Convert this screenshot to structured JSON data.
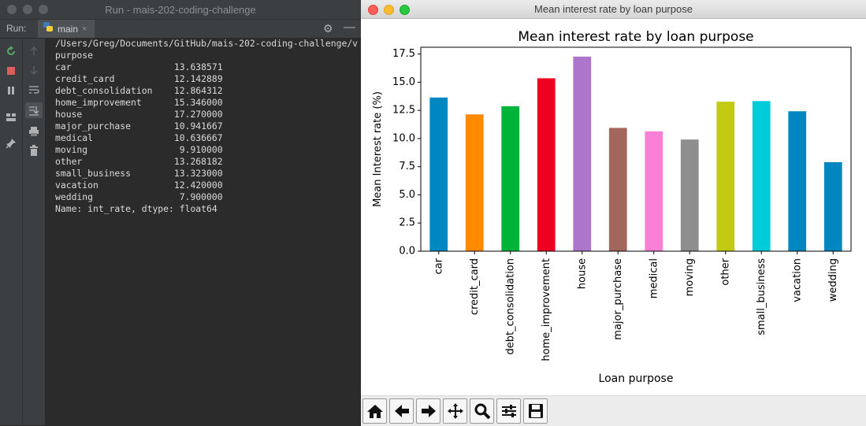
{
  "ide": {
    "title": "Run - mais-202-coding-challenge",
    "run_label": "Run:",
    "tab_label": "main",
    "tab_close": "×",
    "console_lines": [
      "/Users/Greg/Documents/GitHub/mais-202-coding-challenge/v",
      "purpose",
      "car                   13.638571",
      "credit_card           12.142889",
      "debt_consolidation    12.864312",
      "home_improvement      15.346000",
      "house                 17.270000",
      "major_purchase        10.941667",
      "medical               10.636667",
      "moving                 9.910000",
      "other                 13.268182",
      "small_business        13.323000",
      "vacation              12.420000",
      "wedding                7.900000",
      "Name: int_rate, dtype: float64"
    ],
    "icons": {
      "rerun": "rerun-icon",
      "stop": "stop-icon",
      "pause": "pause-icon",
      "layout": "layout-icon",
      "pin": "pin-icon",
      "up": "up-arrow-icon",
      "down": "down-arrow-icon",
      "wrap": "soft-wrap-icon",
      "scroll_end": "scroll-to-end-icon",
      "print": "print-icon",
      "trash": "trash-icon",
      "gear": "gear-icon",
      "minimize": "minimize-icon"
    }
  },
  "figure": {
    "window_title": "Mean interest rate by loan purpose",
    "toolbar_buttons": [
      "home-icon",
      "back-arrow-icon",
      "forward-arrow-icon",
      "pan-icon",
      "zoom-icon",
      "configure-subplots-icon",
      "save-icon"
    ]
  },
  "chart_data": {
    "type": "bar",
    "title": "Mean interest rate by loan purpose",
    "xlabel": "Loan purpose",
    "ylabel": "Mean Interest rate (%)",
    "categories": [
      "car",
      "credit_card",
      "debt_consolidation",
      "home_improvement",
      "house",
      "major_purchase",
      "medical",
      "moving",
      "other",
      "small_business",
      "vacation",
      "wedding"
    ],
    "values": [
      13.638571,
      12.142889,
      12.864312,
      15.346,
      17.27,
      10.941667,
      10.636667,
      9.91,
      13.268182,
      13.323,
      12.42,
      7.9
    ],
    "colors": [
      "#0087c1",
      "#ff8a00",
      "#00b43a",
      "#ee0020",
      "#ad76cb",
      "#a3665c",
      "#f980d6",
      "#8e8e8e",
      "#c3ca12",
      "#00ccd9",
      "#0087c1",
      "#0087c1"
    ],
    "ylim": [
      0,
      18.1
    ],
    "yticks": [
      0.0,
      2.5,
      5.0,
      7.5,
      10.0,
      12.5,
      15.0,
      17.5
    ],
    "ytick_labels": [
      "0.0",
      "2.5",
      "5.0",
      "7.5",
      "10.0",
      "12.5",
      "15.0",
      "17.5"
    ],
    "grid": false,
    "legend": "none"
  }
}
